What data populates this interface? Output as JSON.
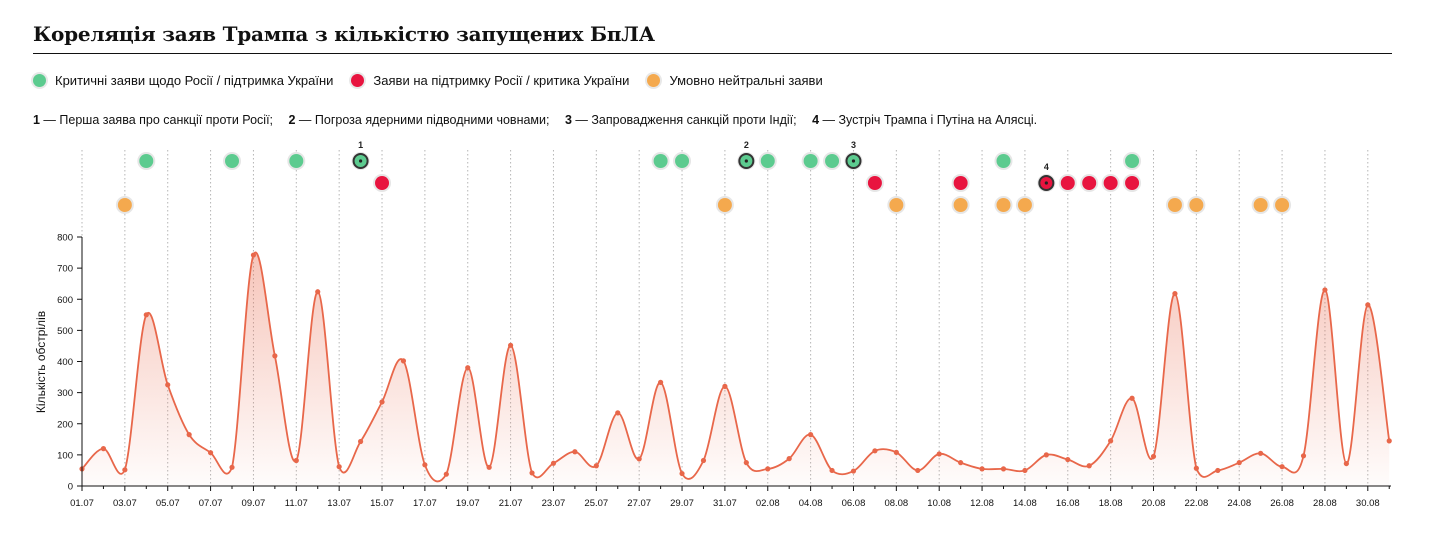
{
  "title": "Кореляція заяв Трампа з кількістю запущених БпЛА",
  "legend": [
    {
      "label": "Критичні заяви щодо Росії / підтримка України",
      "color": "#5ccb8f"
    },
    {
      "label": "Заяви на підтримку Росії / критика України",
      "color": "#e8143f"
    },
    {
      "label": "Умовно нейтральні заяви",
      "color": "#f4a94e"
    }
  ],
  "notes": [
    {
      "num": "1",
      "text": " — Перша заява про санкції проти Росії;"
    },
    {
      "num": "2",
      "text": " — Погроза ядерними підводними човнами;"
    },
    {
      "num": "3",
      "text": " — Запровадження санкцій проти Індії;"
    },
    {
      "num": "4",
      "text": " — Зустріч Трампа і Путіна на Алясці."
    }
  ],
  "colors": {
    "line": "#e8674a",
    "critical": "#5ccb8f",
    "support": "#e8143f",
    "neutral": "#f4a94e",
    "axis": "#111111",
    "gridline": "#b5b5b5"
  },
  "chart_data": {
    "type": "area",
    "ylabel": "Кількість обстрілів",
    "ylim": [
      0,
      800
    ],
    "yticks": [
      "0",
      "100",
      "200",
      "300",
      "400",
      "500",
      "600",
      "700",
      "800"
    ],
    "xticks": [
      "01.07",
      "03.07",
      "05.07",
      "07.07",
      "09.07",
      "11.07",
      "13.07",
      "15.07",
      "17.07",
      "19.07",
      "21.07",
      "23.07",
      "25.07",
      "27.07",
      "29.07",
      "31.07",
      "02.08",
      "04.08",
      "06.08",
      "08.08",
      "10.08",
      "12.08",
      "14.08",
      "16.08",
      "18.08",
      "20.08",
      "22.08",
      "24.08",
      "26.08",
      "28.08",
      "30.08"
    ],
    "series": [
      {
        "name": "Кількість обстрілів",
        "values": [
          55,
          120,
          52,
          550,
          325,
          165,
          107,
          60,
          742,
          418,
          82,
          624,
          62,
          143,
          270,
          402,
          68,
          38,
          380,
          60,
          452,
          42,
          73,
          110,
          65,
          235,
          87,
          333,
          40,
          82,
          320,
          75,
          55,
          88,
          165,
          50,
          48,
          113,
          108,
          50,
          103,
          75,
          55,
          55,
          50,
          100,
          85,
          65,
          145,
          282,
          95,
          618,
          57,
          50,
          75,
          105,
          62,
          97,
          630,
          72,
          582,
          145
        ]
      }
    ],
    "statements": {
      "critical": [
        {
          "day": 3
        },
        {
          "day": 7
        },
        {
          "day": 10
        },
        {
          "day": 13,
          "label": "1"
        },
        {
          "day": 27
        },
        {
          "day": 28
        },
        {
          "day": 31,
          "label": "2"
        },
        {
          "day": 32
        },
        {
          "day": 34
        },
        {
          "day": 35
        },
        {
          "day": 36,
          "label": "3"
        },
        {
          "day": 43
        },
        {
          "day": 49
        }
      ],
      "support": [
        {
          "day": 14
        },
        {
          "day": 37
        },
        {
          "day": 41
        },
        {
          "day": 45,
          "label": "4"
        },
        {
          "day": 46
        },
        {
          "day": 47
        },
        {
          "day": 48
        },
        {
          "day": 49
        }
      ],
      "neutral": [
        {
          "day": 2
        },
        {
          "day": 30
        },
        {
          "day": 38
        },
        {
          "day": 41
        },
        {
          "day": 43
        },
        {
          "day": 44
        },
        {
          "day": 51
        },
        {
          "day": 52
        },
        {
          "day": 55
        },
        {
          "day": 56
        }
      ]
    }
  }
}
